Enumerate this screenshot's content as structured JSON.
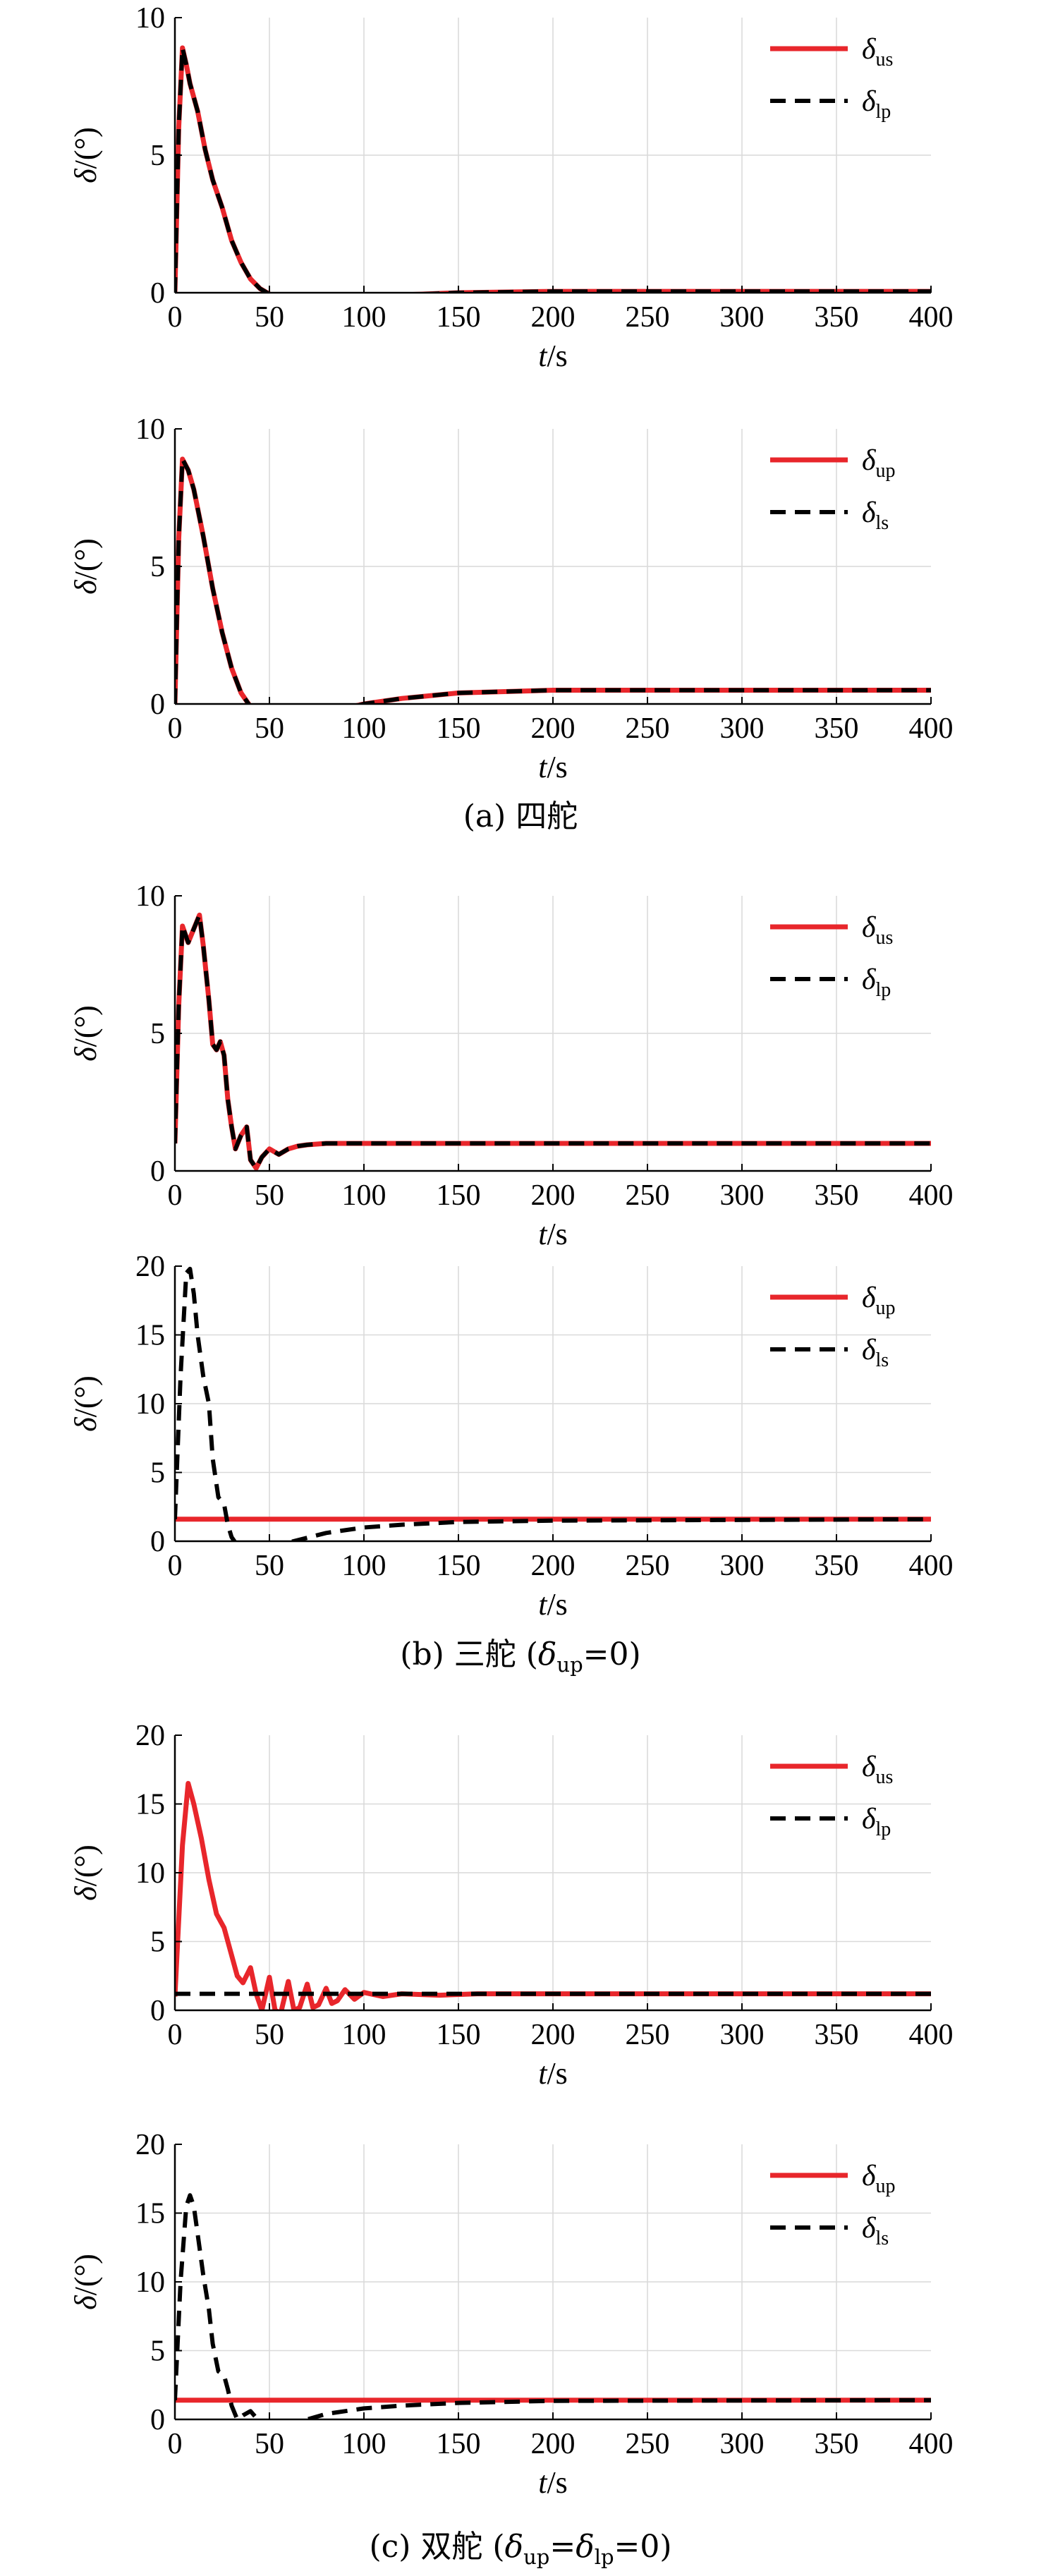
{
  "figure": {
    "colors": {
      "red": "#e8262b",
      "black": "#000000",
      "grid": "#d9d9d9"
    },
    "captions": [
      {
        "text": "(a) 四舵",
        "parts": [
          {
            "t": "(a) 四舵",
            "s": "n"
          }
        ]
      },
      {
        "text": "(b) 三舵 (δup=0)",
        "parts": [
          {
            "t": "(b) 三舵 (",
            "s": "n"
          },
          {
            "t": "δ",
            "s": "i"
          },
          {
            "t": "up",
            "s": "sub"
          },
          {
            "t": "=0)",
            "s": "n"
          }
        ]
      },
      {
        "text": "(c) 双舵 (δup=δlp=0)",
        "parts": [
          {
            "t": "(c) 双舵 (",
            "s": "n"
          },
          {
            "t": "δ",
            "s": "i"
          },
          {
            "t": "up",
            "s": "sub"
          },
          {
            "t": "=",
            "s": "n"
          },
          {
            "t": "δ",
            "s": "i"
          },
          {
            "t": "lp",
            "s": "sub"
          },
          {
            "t": "=0)",
            "s": "n"
          }
        ]
      }
    ]
  },
  "chart_data": [
    {
      "type": "line",
      "panel": "a-top",
      "xlabel": "t/s",
      "ylabel": "δ/(°)",
      "xlim": [
        0,
        400
      ],
      "ylim": [
        0,
        10
      ],
      "xticks": [
        "0",
        "50",
        "100",
        "150",
        "200",
        "250",
        "300",
        "350",
        "400"
      ],
      "yticks": [
        "0",
        "5",
        "10"
      ],
      "grid": true,
      "legend": "top-right",
      "series": [
        {
          "name": "δus",
          "legend_main": "δ",
          "legend_sub": "us",
          "color": "#e8262b",
          "style": "solid",
          "x": [
            0,
            2,
            4,
            6,
            8,
            12,
            16,
            20,
            25,
            30,
            35,
            40,
            45,
            50,
            55,
            60,
            70,
            80,
            100,
            120,
            150,
            200,
            400
          ],
          "y": [
            0,
            6,
            8.9,
            8.3,
            7.6,
            6.6,
            5.2,
            4.1,
            3.1,
            1.9,
            1.1,
            0.5,
            0.15,
            -0.05,
            -0.15,
            -0.2,
            -0.25,
            -0.25,
            -0.15,
            -0.08,
            0,
            0.05,
            0.05
          ]
        },
        {
          "name": "δlp",
          "legend_main": "δ",
          "legend_sub": "lp",
          "color": "#000000",
          "style": "dash",
          "x": [
            0,
            2,
            4,
            6,
            8,
            12,
            16,
            20,
            25,
            30,
            35,
            40,
            45,
            50,
            55,
            60,
            70,
            80,
            100,
            120,
            150,
            200,
            400
          ],
          "y": [
            0,
            6,
            8.9,
            8.3,
            7.6,
            6.6,
            5.2,
            4.1,
            3.1,
            1.9,
            1.1,
            0.5,
            0.15,
            -0.05,
            -0.15,
            -0.2,
            -0.25,
            -0.25,
            -0.15,
            -0.08,
            0,
            0.05,
            0.05
          ]
        }
      ]
    },
    {
      "type": "line",
      "panel": "a-bottom",
      "xlabel": "t/s",
      "ylabel": "δ/(°)",
      "xlim": [
        0,
        400
      ],
      "ylim": [
        0,
        10
      ],
      "xticks": [
        "0",
        "50",
        "100",
        "150",
        "200",
        "250",
        "300",
        "350",
        "400"
      ],
      "yticks": [
        "0",
        "5",
        "10"
      ],
      "grid": true,
      "legend": "top-right",
      "series": [
        {
          "name": "δup",
          "legend_main": "δ",
          "legend_sub": "up",
          "color": "#e8262b",
          "style": "solid",
          "x": [
            0,
            2,
            4,
            7,
            10,
            15,
            20,
            25,
            30,
            35,
            40,
            45,
            50,
            55,
            60,
            70,
            80,
            100,
            120,
            150,
            200,
            250,
            400
          ],
          "y": [
            0,
            6,
            8.9,
            8.5,
            7.8,
            6.1,
            4.2,
            2.6,
            1.3,
            0.4,
            -0.1,
            -0.4,
            -0.5,
            -0.55,
            -0.55,
            -0.45,
            -0.3,
            0,
            0.2,
            0.4,
            0.5,
            0.5,
            0.5
          ]
        },
        {
          "name": "δls",
          "legend_main": "δ",
          "legend_sub": "ls",
          "color": "#000000",
          "style": "dash",
          "x": [
            0,
            2,
            4,
            7,
            10,
            15,
            20,
            25,
            30,
            35,
            40,
            45,
            50,
            55,
            60,
            70,
            80,
            100,
            120,
            150,
            200,
            250,
            400
          ],
          "y": [
            0,
            6,
            8.9,
            8.5,
            7.8,
            6.1,
            4.2,
            2.6,
            1.3,
            0.4,
            -0.1,
            -0.4,
            -0.5,
            -0.55,
            -0.55,
            -0.45,
            -0.3,
            0,
            0.2,
            0.4,
            0.5,
            0.5,
            0.5
          ]
        }
      ]
    },
    {
      "type": "line",
      "panel": "b-top",
      "xlabel": "t/s",
      "ylabel": "δ/(°)",
      "xlim": [
        0,
        400
      ],
      "ylim": [
        0,
        10
      ],
      "xticks": [
        "0",
        "50",
        "100",
        "150",
        "200",
        "250",
        "300",
        "350",
        "400"
      ],
      "yticks": [
        "0",
        "5",
        "10"
      ],
      "grid": true,
      "legend": "top-right",
      "series": [
        {
          "name": "δus",
          "legend_main": "δ",
          "legend_sub": "us",
          "color": "#e8262b",
          "style": "solid",
          "x": [
            0,
            2,
            4,
            7,
            10,
            13,
            15,
            18,
            20,
            22,
            24,
            26,
            28,
            30,
            32,
            35,
            38,
            40,
            43,
            46,
            50,
            55,
            60,
            65,
            70,
            80,
            100,
            150,
            400
          ],
          "y": [
            1,
            6,
            8.9,
            8.3,
            8.8,
            9.3,
            8.2,
            6.2,
            4.6,
            4.4,
            4.7,
            4.2,
            2.6,
            1.6,
            0.8,
            1.3,
            1.6,
            0.4,
            0.1,
            0.5,
            0.8,
            0.6,
            0.8,
            0.9,
            0.95,
            1.0,
            1.0,
            1.0,
            1.0
          ]
        },
        {
          "name": "δlp",
          "legend_main": "δ",
          "legend_sub": "lp",
          "color": "#000000",
          "style": "dash",
          "x": [
            0,
            2,
            4,
            7,
            10,
            13,
            15,
            18,
            20,
            22,
            24,
            26,
            28,
            30,
            32,
            35,
            38,
            40,
            43,
            46,
            50,
            55,
            60,
            65,
            70,
            80,
            100,
            150,
            400
          ],
          "y": [
            1,
            6,
            8.9,
            8.3,
            8.8,
            9.3,
            8.2,
            6.2,
            4.6,
            4.4,
            4.7,
            4.2,
            2.6,
            1.6,
            0.8,
            1.3,
            1.6,
            0.4,
            0.1,
            0.5,
            0.8,
            0.6,
            0.8,
            0.9,
            0.95,
            1.0,
            1.0,
            1.0,
            1.0
          ]
        }
      ]
    },
    {
      "type": "line",
      "panel": "b-bottom",
      "xlabel": "t/s",
      "ylabel": "δ/(°)",
      "xlim": [
        0,
        400
      ],
      "ylim": [
        0,
        20
      ],
      "xticks": [
        "0",
        "50",
        "100",
        "150",
        "200",
        "250",
        "300",
        "350",
        "400"
      ],
      "yticks": [
        "0",
        "5",
        "10",
        "15",
        "20"
      ],
      "grid": true,
      "legend": "top-right",
      "series": [
        {
          "name": "δup",
          "legend_main": "δ",
          "legend_sub": "up",
          "color": "#e8262b",
          "style": "solid",
          "x": [
            0,
            400
          ],
          "y": [
            1.6,
            1.6
          ]
        },
        {
          "name": "δls",
          "legend_main": "δ",
          "legend_sub": "ls",
          "color": "#000000",
          "style": "dash",
          "x": [
            0,
            3,
            6,
            8,
            10,
            12,
            15,
            18,
            20,
            23,
            26,
            28,
            30,
            33,
            36,
            40,
            45,
            50,
            60,
            80,
            100,
            120,
            150,
            200,
            400
          ],
          "y": [
            1.6,
            12,
            19.5,
            19.8,
            18,
            15,
            12,
            10,
            6,
            3.2,
            2.7,
            1.2,
            0.3,
            -0.3,
            -0.6,
            -0.7,
            -0.6,
            -0.4,
            -0.1,
            0.6,
            1.0,
            1.2,
            1.4,
            1.5,
            1.6
          ]
        }
      ]
    },
    {
      "type": "line",
      "panel": "c-top",
      "xlabel": "t/s",
      "ylabel": "δ/(°)",
      "xlim": [
        0,
        400
      ],
      "ylim": [
        0,
        20
      ],
      "xticks": [
        "0",
        "50",
        "100",
        "150",
        "200",
        "250",
        "300",
        "350",
        "400"
      ],
      "yticks": [
        "0",
        "5",
        "10",
        "15",
        "20"
      ],
      "grid": true,
      "legend": "top-right",
      "series": [
        {
          "name": "δus",
          "legend_main": "δ",
          "legend_sub": "us",
          "color": "#e8262b",
          "style": "solid",
          "x": [
            0,
            4,
            7,
            10,
            14,
            18,
            22,
            26,
            30,
            33,
            36,
            40,
            43,
            46,
            50,
            53,
            56,
            60,
            63,
            66,
            70,
            73,
            76,
            80,
            83,
            86,
            90,
            95,
            100,
            110,
            120,
            140,
            160,
            200,
            400
          ],
          "y": [
            1,
            12,
            16.5,
            15,
            12.5,
            9.5,
            7,
            6,
            4,
            2.5,
            2,
            3.1,
            1.2,
            0,
            2.4,
            0,
            -0.2,
            2.1,
            0,
            0.2,
            1.9,
            0.2,
            0.4,
            1.6,
            0.5,
            0.7,
            1.5,
            0.8,
            1.3,
            1.0,
            1.2,
            1.1,
            1.2,
            1.2,
            1.2
          ]
        },
        {
          "name": "δlp",
          "legend_main": "δ",
          "legend_sub": "lp",
          "color": "#000000",
          "style": "dash",
          "x": [
            0,
            400
          ],
          "y": [
            1.2,
            1.2
          ]
        }
      ]
    },
    {
      "type": "line",
      "panel": "c-bottom",
      "xlabel": "t/s",
      "ylabel": "δ/(°)",
      "xlim": [
        0,
        400
      ],
      "ylim": [
        0,
        20
      ],
      "xticks": [
        "0",
        "50",
        "100",
        "150",
        "200",
        "250",
        "300",
        "350",
        "400"
      ],
      "yticks": [
        "0",
        "5",
        "10",
        "15",
        "20"
      ],
      "grid": true,
      "legend": "top-right",
      "series": [
        {
          "name": "δup",
          "legend_main": "δ",
          "legend_sub": "up",
          "color": "#e8262b",
          "style": "solid",
          "x": [
            0,
            400
          ],
          "y": [
            1.4,
            1.4
          ]
        },
        {
          "name": "δls",
          "legend_main": "δ",
          "legend_sub": "ls",
          "color": "#000000",
          "style": "dash",
          "x": [
            0,
            3,
            6,
            8,
            10,
            12,
            15,
            18,
            20,
            23,
            26,
            28,
            30,
            33,
            36,
            40,
            45,
            50,
            55,
            60,
            70,
            80,
            100,
            120,
            150,
            200,
            400
          ],
          "y": [
            1.4,
            10,
            15.5,
            16.3,
            15.5,
            13.5,
            10.5,
            8,
            5.5,
            3.5,
            3.2,
            2.2,
            1.0,
            0,
            0.3,
            0.6,
            -0.2,
            -0.6,
            -0.5,
            -0.4,
            0,
            0.4,
            0.8,
            1.0,
            1.2,
            1.35,
            1.4
          ]
        }
      ]
    }
  ]
}
